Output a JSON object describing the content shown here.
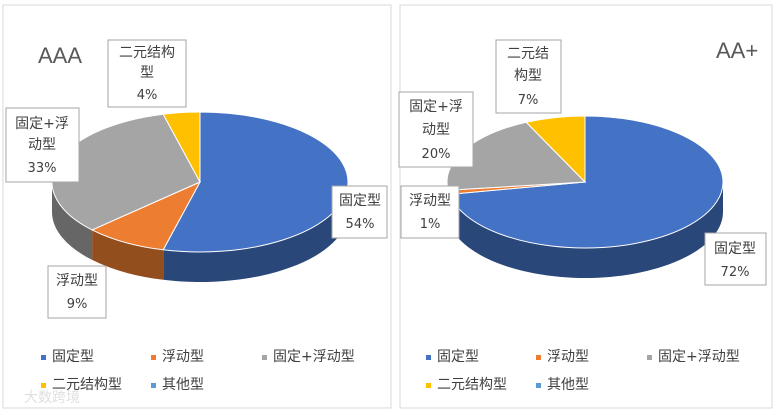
{
  "chart_data": [
    {
      "type": "pie",
      "title": "AAA",
      "categories": [
        "固定型",
        "浮动型",
        "固定+浮动型",
        "二元结构型",
        "其他型"
      ],
      "values": [
        54,
        9,
        33,
        4,
        0
      ],
      "labels": {
        "fixed": [
          "固定型",
          "54%"
        ],
        "float": [
          "浮动型",
          "9%"
        ],
        "mixed": [
          "固定+浮",
          "动型",
          "33%"
        ],
        "binary": [
          "二元结构",
          "型",
          "4%"
        ]
      },
      "colors": [
        "#4472C4",
        "#ED7D31",
        "#A5A5A5",
        "#FFC000",
        "#5B9BD5"
      ],
      "legend_position": "bottom"
    },
    {
      "type": "pie",
      "title": "AA+",
      "categories": [
        "固定型",
        "浮动型",
        "固定+浮动型",
        "二元结构型",
        "其他型"
      ],
      "values": [
        72,
        1,
        20,
        7,
        0
      ],
      "labels": {
        "fixed": [
          "固定型",
          "72%"
        ],
        "float": [
          "浮动型",
          "1%"
        ],
        "mixed": [
          "固定+浮",
          "动型",
          "20%"
        ],
        "binary": [
          "二元结",
          "构型",
          "7%"
        ]
      },
      "colors": [
        "#4472C4",
        "#ED7D31",
        "#A5A5A5",
        "#FFC000",
        "#5B9BD5"
      ],
      "legend_position": "bottom"
    }
  ],
  "watermark": "大数跨境"
}
